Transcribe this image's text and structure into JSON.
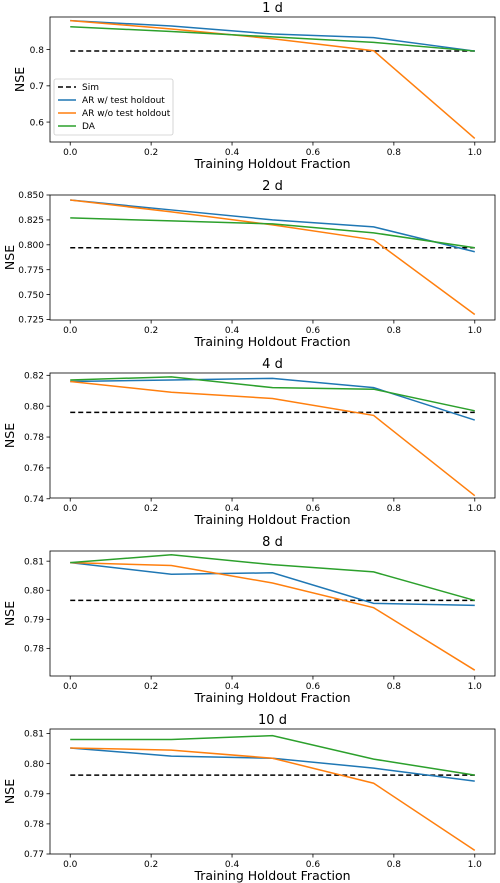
{
  "colors": {
    "Sim": "#000000",
    "AR w/ test holdout": "#1f77b4",
    "AR w/o test holdout": "#ff7f0e",
    "DA": "#2ca02c"
  },
  "chart_data": [
    {
      "type": "line",
      "title": "1 d",
      "xlabel": "Training Holdout Fraction",
      "ylabel": "NSE",
      "x": [
        0.0,
        0.25,
        0.5,
        0.75,
        1.0
      ],
      "xlim": [
        -0.05,
        1.05
      ],
      "xticks": [
        "0.0",
        "0.2",
        "0.4",
        "0.6",
        "0.8",
        "1.0"
      ],
      "ylim": [
        0.545,
        0.89
      ],
      "yticks": [
        "0.6",
        "0.7",
        "0.8"
      ],
      "legend": "center-left",
      "series": [
        {
          "name": "Sim",
          "values": [
            0.796,
            0.796,
            0.796,
            0.796,
            0.796
          ]
        },
        {
          "name": "AR w/ test holdout",
          "values": [
            0.88,
            0.865,
            0.843,
            0.833,
            0.796
          ]
        },
        {
          "name": "AR w/o test holdout",
          "values": [
            0.88,
            0.857,
            0.83,
            0.797,
            0.555
          ]
        },
        {
          "name": "DA",
          "values": [
            0.863,
            0.85,
            0.835,
            0.82,
            0.796
          ]
        }
      ]
    },
    {
      "type": "line",
      "title": "2 d",
      "xlabel": "Training Holdout Fraction",
      "ylabel": "NSE",
      "x": [
        0.0,
        0.25,
        0.5,
        0.75,
        1.0
      ],
      "xlim": [
        -0.05,
        1.05
      ],
      "xticks": [
        "0.0",
        "0.2",
        "0.4",
        "0.6",
        "0.8",
        "1.0"
      ],
      "ylim": [
        0.7245,
        0.85
      ],
      "yticks": [
        "0.725",
        "0.750",
        "0.775",
        "0.800",
        "0.825",
        "0.850"
      ],
      "series": [
        {
          "name": "Sim",
          "values": [
            0.797,
            0.797,
            0.797,
            0.797,
            0.797
          ]
        },
        {
          "name": "AR w/ test holdout",
          "values": [
            0.845,
            0.835,
            0.825,
            0.818,
            0.793
          ]
        },
        {
          "name": "AR w/o test holdout",
          "values": [
            0.845,
            0.833,
            0.82,
            0.805,
            0.73
          ]
        },
        {
          "name": "DA",
          "values": [
            0.827,
            0.824,
            0.821,
            0.812,
            0.797
          ]
        }
      ]
    },
    {
      "type": "line",
      "title": "4 d",
      "xlabel": "Training Holdout Fraction",
      "ylabel": "NSE",
      "x": [
        0.0,
        0.25,
        0.5,
        0.75,
        1.0
      ],
      "xlim": [
        -0.05,
        1.05
      ],
      "xticks": [
        "0.0",
        "0.2",
        "0.4",
        "0.6",
        "0.8",
        "1.0"
      ],
      "ylim": [
        0.7405,
        0.8215
      ],
      "yticks": [
        "0.74",
        "0.76",
        "0.78",
        "0.80",
        "0.82"
      ],
      "series": [
        {
          "name": "Sim",
          "values": [
            0.796,
            0.796,
            0.796,
            0.796,
            0.796
          ]
        },
        {
          "name": "AR w/ test holdout",
          "values": [
            0.816,
            0.817,
            0.818,
            0.812,
            0.791
          ]
        },
        {
          "name": "AR w/o test holdout",
          "values": [
            0.816,
            0.809,
            0.805,
            0.794,
            0.742
          ]
        },
        {
          "name": "DA",
          "values": [
            0.817,
            0.819,
            0.812,
            0.811,
            0.797
          ]
        }
      ]
    },
    {
      "type": "line",
      "title": "8 d",
      "xlabel": "Training Holdout Fraction",
      "ylabel": "NSE",
      "x": [
        0.0,
        0.25,
        0.5,
        0.75,
        1.0
      ],
      "xlim": [
        -0.05,
        1.05
      ],
      "xticks": [
        "0.0",
        "0.2",
        "0.4",
        "0.6",
        "0.8",
        "1.0"
      ],
      "ylim": [
        0.7705,
        0.8135
      ],
      "yticks": [
        "0.78",
        "0.79",
        "0.80",
        "0.81"
      ],
      "series": [
        {
          "name": "Sim",
          "values": [
            0.7965,
            0.7965,
            0.7965,
            0.7965,
            0.7965
          ]
        },
        {
          "name": "AR w/ test holdout",
          "values": [
            0.8095,
            0.8055,
            0.806,
            0.7955,
            0.7948
          ]
        },
        {
          "name": "AR w/o test holdout",
          "values": [
            0.8095,
            0.8085,
            0.8025,
            0.794,
            0.7725
          ]
        },
        {
          "name": "DA",
          "values": [
            0.8095,
            0.8122,
            0.8088,
            0.8063,
            0.7965
          ]
        }
      ]
    },
    {
      "type": "line",
      "title": "10 d",
      "xlabel": "Training Holdout Fraction",
      "ylabel": "NSE",
      "x": [
        0.0,
        0.25,
        0.5,
        0.75,
        1.0
      ],
      "xlim": [
        -0.05,
        1.05
      ],
      "xticks": [
        "0.0",
        "0.2",
        "0.4",
        "0.6",
        "0.8",
        "1.0"
      ],
      "ylim": [
        0.77,
        0.8115
      ],
      "yticks": [
        "0.77",
        "0.78",
        "0.79",
        "0.80",
        "0.81"
      ],
      "series": [
        {
          "name": "Sim",
          "values": [
            0.7962,
            0.7962,
            0.7962,
            0.7962,
            0.7962
          ]
        },
        {
          "name": "AR w/ test holdout",
          "values": [
            0.8052,
            0.8025,
            0.8018,
            0.7985,
            0.7942
          ]
        },
        {
          "name": "AR w/o test holdout",
          "values": [
            0.8052,
            0.8045,
            0.8018,
            0.7935,
            0.7712
          ]
        },
        {
          "name": "DA",
          "values": [
            0.808,
            0.808,
            0.8093,
            0.8015,
            0.7962
          ]
        }
      ]
    }
  ]
}
